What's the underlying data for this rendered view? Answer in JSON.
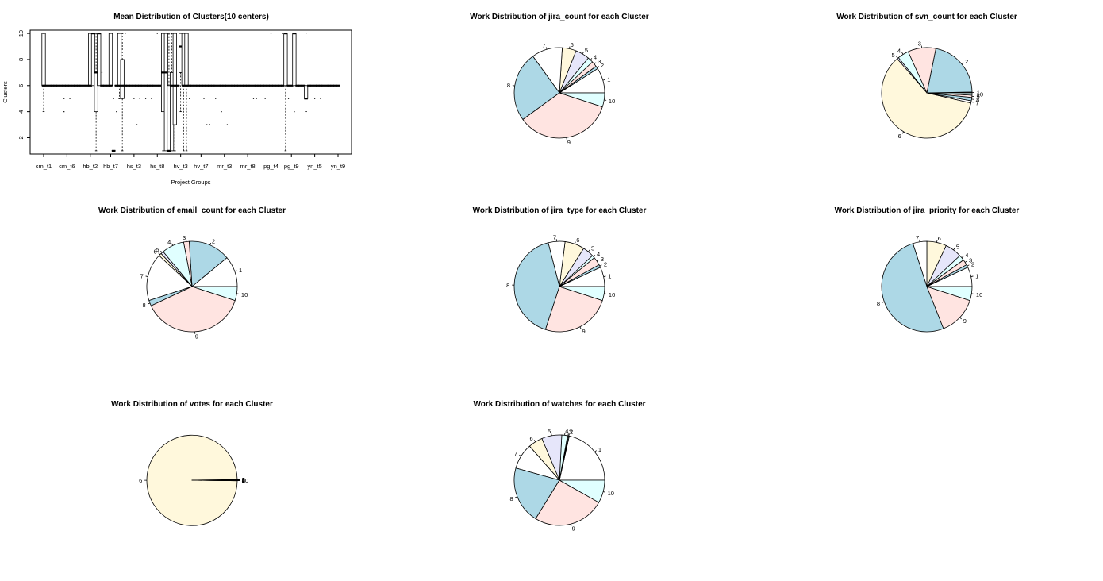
{
  "chart_data": [
    {
      "type": "boxplot",
      "title": "Mean Distribution of Clusters(10 centers)",
      "xlabel": "Project Groups",
      "ylabel": "Clusters",
      "ylim": [
        1,
        10
      ],
      "yticks": [
        2,
        4,
        6,
        8,
        10
      ],
      "xtick_labels": [
        "cm_t1",
        "cm_t6",
        "hb_t2",
        "hb_t7",
        "hs_t3",
        "hs_t8",
        "hv_t3",
        "hv_t7",
        "mr_t3",
        "mr_t8",
        "pg_t4",
        "pg_t9",
        "yn_t5",
        "yn_t9"
      ],
      "boxes": [
        {
          "q1": 6,
          "median": 6,
          "q3": 10,
          "lo": 4,
          "hi": 10
        },
        {
          "q1": 6,
          "median": 6,
          "q3": 6,
          "lo": 6,
          "hi": 6
        },
        {
          "q1": 6,
          "median": 6,
          "q3": 6,
          "lo": 6,
          "hi": 6
        },
        {
          "q1": 6,
          "median": 6,
          "q3": 6,
          "lo": 6,
          "hi": 6
        },
        {
          "q1": 6,
          "median": 6,
          "q3": 6,
          "lo": 6,
          "hi": 6
        },
        {
          "q1": 6,
          "median": 6,
          "q3": 6,
          "lo": 6,
          "hi": 6
        },
        {
          "q1": 6,
          "median": 6,
          "q3": 6,
          "lo": 6,
          "hi": 6
        },
        {
          "q1": 6,
          "median": 6,
          "q3": 6,
          "lo": 6,
          "hi": 6
        },
        {
          "q1": 6,
          "median": 6,
          "q3": 6,
          "lo": 6,
          "hi": 6
        },
        {
          "q1": 6,
          "median": 6,
          "q3": 6,
          "lo": 6,
          "hi": 6
        },
        {
          "q1": 6,
          "median": 6,
          "q3": 6,
          "lo": 6,
          "hi": 6
        },
        {
          "q1": 6,
          "median": 6,
          "q3": 6,
          "lo": 6,
          "hi": 6
        },
        {
          "q1": 6,
          "median": 6,
          "q3": 6,
          "lo": 6,
          "hi": 6
        },
        {
          "q1": 6,
          "median": 6,
          "q3": 6,
          "lo": 6,
          "hi": 6
        },
        {
          "q1": 6,
          "median": 6,
          "q3": 6,
          "lo": 6,
          "hi": 6
        },
        {
          "q1": 6,
          "median": 6,
          "q3": 6,
          "lo": 6,
          "hi": 6
        },
        {
          "q1": 6,
          "median": 6,
          "q3": 10,
          "lo": 6,
          "hi": 10
        },
        {
          "q1": 6,
          "median": 10,
          "q3": 10,
          "lo": 6,
          "hi": 10
        },
        {
          "q1": 4,
          "median": 7,
          "q3": 7,
          "lo": 1,
          "hi": 10
        },
        {
          "q1": 6,
          "median": 10,
          "q3": 10,
          "lo": 6,
          "hi": 10
        },
        {
          "q1": 6,
          "median": 6,
          "q3": 6,
          "lo": 6,
          "hi": 6
        },
        {
          "q1": 6,
          "median": 6,
          "q3": 6,
          "lo": 6,
          "hi": 6
        },
        {
          "q1": 6,
          "median": 6,
          "q3": 6,
          "lo": 6,
          "hi": 6
        },
        {
          "q1": 6,
          "median": 6,
          "q3": 10,
          "lo": 6,
          "hi": 10
        },
        {
          "q1": 1,
          "median": 1,
          "q3": 1,
          "lo": 1,
          "hi": 1
        },
        {
          "q1": 6,
          "median": 6,
          "q3": 6,
          "lo": 6,
          "hi": 6
        },
        {
          "q1": 6,
          "median": 6,
          "q3": 10,
          "lo": 5,
          "hi": 10
        },
        {
          "q1": 5,
          "median": 6,
          "q3": 8,
          "lo": 1,
          "hi": 10
        },
        {
          "q1": 6,
          "median": 6,
          "q3": 6,
          "lo": 6,
          "hi": 6
        },
        {
          "q1": 6,
          "median": 6,
          "q3": 6,
          "lo": 6,
          "hi": 6
        },
        {
          "q1": 6,
          "median": 6,
          "q3": 6,
          "lo": 6,
          "hi": 6
        },
        {
          "q1": 6,
          "median": 6,
          "q3": 6,
          "lo": 6,
          "hi": 6
        },
        {
          "q1": 6,
          "median": 6,
          "q3": 6,
          "lo": 6,
          "hi": 6
        },
        {
          "q1": 6,
          "median": 6,
          "q3": 6,
          "lo": 6,
          "hi": 6
        },
        {
          "q1": 6,
          "median": 6,
          "q3": 6,
          "lo": 6,
          "hi": 6
        },
        {
          "q1": 6,
          "median": 6,
          "q3": 6,
          "lo": 6,
          "hi": 6
        },
        {
          "q1": 6,
          "median": 6,
          "q3": 6,
          "lo": 6,
          "hi": 6
        },
        {
          "q1": 6,
          "median": 6,
          "q3": 6,
          "lo": 6,
          "hi": 6
        },
        {
          "q1": 6,
          "median": 6,
          "q3": 6,
          "lo": 6,
          "hi": 6
        },
        {
          "q1": 6,
          "median": 6,
          "q3": 6,
          "lo": 6,
          "hi": 6
        },
        {
          "q1": 6,
          "median": 6,
          "q3": 6,
          "lo": 6,
          "hi": 6
        },
        {
          "q1": 4,
          "median": 7,
          "q3": 10,
          "lo": 1,
          "hi": 10
        },
        {
          "q1": 1,
          "median": 7,
          "q3": 10,
          "lo": 1,
          "hi": 10
        },
        {
          "q1": 1,
          "median": 1,
          "q3": 6,
          "lo": 1,
          "hi": 10
        },
        {
          "q1": 1,
          "median": 6,
          "q3": 7,
          "lo": 1,
          "hi": 10
        },
        {
          "q1": 3,
          "median": 6,
          "q3": 10,
          "lo": 1,
          "hi": 10
        },
        {
          "q1": 6,
          "median": 6,
          "q3": 6,
          "lo": 6,
          "hi": 6
        },
        {
          "q1": 7,
          "median": 9,
          "q3": 10,
          "lo": 4,
          "hi": 10
        },
        {
          "q1": 6,
          "median": 6,
          "q3": 10,
          "lo": 1,
          "hi": 10
        },
        {
          "q1": 6,
          "median": 6,
          "q3": 10,
          "lo": 1,
          "hi": 10
        },
        {
          "q1": 6,
          "median": 6,
          "q3": 6,
          "lo": 6,
          "hi": 6
        },
        {
          "q1": 6,
          "median": 6,
          "q3": 6,
          "lo": 6,
          "hi": 6
        },
        {
          "q1": 6,
          "median": 6,
          "q3": 6,
          "lo": 6,
          "hi": 6
        },
        {
          "q1": 6,
          "median": 6,
          "q3": 6,
          "lo": 6,
          "hi": 6
        },
        {
          "q1": 6,
          "median": 6,
          "q3": 6,
          "lo": 6,
          "hi": 6
        },
        {
          "q1": 6,
          "median": 6,
          "q3": 6,
          "lo": 6,
          "hi": 6
        },
        {
          "q1": 6,
          "median": 6,
          "q3": 6,
          "lo": 6,
          "hi": 6
        },
        {
          "q1": 6,
          "median": 6,
          "q3": 6,
          "lo": 6,
          "hi": 6
        },
        {
          "q1": 6,
          "median": 6,
          "q3": 6,
          "lo": 6,
          "hi": 6
        },
        {
          "q1": 6,
          "median": 6,
          "q3": 6,
          "lo": 6,
          "hi": 6
        },
        {
          "q1": 6,
          "median": 6,
          "q3": 6,
          "lo": 6,
          "hi": 6
        },
        {
          "q1": 6,
          "median": 6,
          "q3": 6,
          "lo": 6,
          "hi": 6
        },
        {
          "q1": 6,
          "median": 6,
          "q3": 6,
          "lo": 6,
          "hi": 6
        },
        {
          "q1": 6,
          "median": 6,
          "q3": 6,
          "lo": 6,
          "hi": 6
        },
        {
          "q1": 6,
          "median": 6,
          "q3": 6,
          "lo": 6,
          "hi": 6
        },
        {
          "q1": 6,
          "median": 6,
          "q3": 6,
          "lo": 6,
          "hi": 6
        },
        {
          "q1": 6,
          "median": 6,
          "q3": 6,
          "lo": 6,
          "hi": 6
        },
        {
          "q1": 6,
          "median": 6,
          "q3": 6,
          "lo": 6,
          "hi": 6
        },
        {
          "q1": 6,
          "median": 6,
          "q3": 6,
          "lo": 6,
          "hi": 6
        },
        {
          "q1": 6,
          "median": 6,
          "q3": 6,
          "lo": 6,
          "hi": 6
        },
        {
          "q1": 6,
          "median": 6,
          "q3": 6,
          "lo": 6,
          "hi": 6
        },
        {
          "q1": 6,
          "median": 6,
          "q3": 6,
          "lo": 6,
          "hi": 6
        },
        {
          "q1": 6,
          "median": 6,
          "q3": 6,
          "lo": 6,
          "hi": 6
        },
        {
          "q1": 6,
          "median": 6,
          "q3": 6,
          "lo": 6,
          "hi": 6
        },
        {
          "q1": 6,
          "median": 6,
          "q3": 6,
          "lo": 6,
          "hi": 6
        },
        {
          "q1": 6,
          "median": 6,
          "q3": 6,
          "lo": 6,
          "hi": 6
        },
        {
          "q1": 6,
          "median": 6,
          "q3": 6,
          "lo": 6,
          "hi": 6
        },
        {
          "q1": 6,
          "median": 6,
          "q3": 6,
          "lo": 6,
          "hi": 6
        },
        {
          "q1": 6,
          "median": 6,
          "q3": 6,
          "lo": 6,
          "hi": 6
        },
        {
          "q1": 6,
          "median": 6,
          "q3": 6,
          "lo": 6,
          "hi": 6
        },
        {
          "q1": 6,
          "median": 6,
          "q3": 6,
          "lo": 6,
          "hi": 6
        },
        {
          "q1": 6,
          "median": 6,
          "q3": 6,
          "lo": 6,
          "hi": 6
        },
        {
          "q1": 6,
          "median": 6,
          "q3": 6,
          "lo": 6,
          "hi": 6
        },
        {
          "q1": 6,
          "median": 10,
          "q3": 10,
          "lo": 1,
          "hi": 10
        },
        {
          "q1": 6,
          "median": 6,
          "q3": 6,
          "lo": 6,
          "hi": 6
        },
        {
          "q1": 6,
          "median": 6,
          "q3": 6,
          "lo": 6,
          "hi": 6
        },
        {
          "q1": 6,
          "median": 10,
          "q3": 10,
          "lo": 6,
          "hi": 10
        },
        {
          "q1": 6,
          "median": 6,
          "q3": 6,
          "lo": 6,
          "hi": 6
        },
        {
          "q1": 6,
          "median": 6,
          "q3": 6,
          "lo": 6,
          "hi": 6
        },
        {
          "q1": 6,
          "median": 6,
          "q3": 6,
          "lo": 6,
          "hi": 6
        },
        {
          "q1": 5,
          "median": 5,
          "q3": 6,
          "lo": 4,
          "hi": 6
        },
        {
          "q1": 6,
          "median": 6,
          "q3": 6,
          "lo": 6,
          "hi": 6
        },
        {
          "q1": 6,
          "median": 6,
          "q3": 6,
          "lo": 6,
          "hi": 6
        },
        {
          "q1": 6,
          "median": 6,
          "q3": 6,
          "lo": 6,
          "hi": 6
        },
        {
          "q1": 6,
          "median": 6,
          "q3": 6,
          "lo": 6,
          "hi": 6
        },
        {
          "q1": 6,
          "median": 6,
          "q3": 6,
          "lo": 6,
          "hi": 6
        },
        {
          "q1": 6,
          "median": 6,
          "q3": 6,
          "lo": 6,
          "hi": 6
        },
        {
          "q1": 6,
          "median": 6,
          "q3": 6,
          "lo": 6,
          "hi": 6
        },
        {
          "q1": 6,
          "median": 6,
          "q3": 6,
          "lo": 6,
          "hi": 6
        },
        {
          "q1": 6,
          "median": 6,
          "q3": 6,
          "lo": 6,
          "hi": 6
        },
        {
          "q1": 6,
          "median": 6,
          "q3": 6,
          "lo": 6,
          "hi": 6
        },
        {
          "q1": 6,
          "median": 6,
          "q3": 6,
          "lo": 6,
          "hi": 6
        }
      ],
      "outliers": [
        [
          0,
          10
        ],
        [
          7,
          5
        ],
        [
          7,
          4
        ],
        [
          9,
          5
        ],
        [
          17,
          10
        ],
        [
          19,
          10
        ],
        [
          20,
          7
        ],
        [
          24,
          5
        ],
        [
          25,
          4
        ],
        [
          26,
          5
        ],
        [
          28,
          10
        ],
        [
          31,
          5
        ],
        [
          32,
          3
        ],
        [
          33,
          5
        ],
        [
          35,
          5
        ],
        [
          37,
          5
        ],
        [
          39,
          10
        ],
        [
          49,
          5
        ],
        [
          50,
          5
        ],
        [
          55,
          5
        ],
        [
          56,
          3
        ],
        [
          57,
          3
        ],
        [
          59,
          5
        ],
        [
          61,
          4
        ],
        [
          63,
          3
        ],
        [
          72,
          5
        ],
        [
          73,
          5
        ],
        [
          76,
          5
        ],
        [
          78,
          10
        ],
        [
          82,
          10
        ],
        [
          84,
          5
        ],
        [
          86,
          4
        ],
        [
          90,
          10
        ],
        [
          93,
          5
        ],
        [
          95,
          5
        ]
      ]
    },
    {
      "type": "pie",
      "title": "Work Distribution of jira_count for each Cluster",
      "labels": [
        "1",
        "2",
        "3",
        "4",
        "5",
        "6",
        "7",
        "8",
        "9",
        "10"
      ],
      "values": [
        9,
        1,
        2,
        2,
        5,
        5,
        11,
        25,
        35,
        5
      ],
      "colors": [
        "#ffffff",
        "#add8e6",
        "#ffe4e1",
        "#e0ffff",
        "#e6e6fa",
        "#fff8dc",
        "#ffffff",
        "#add8e6",
        "#ffe4e1",
        "#e0ffff"
      ]
    },
    {
      "type": "pie",
      "title": "Work Distribution of svn_count for each Cluster",
      "labels": [
        "1",
        "2",
        "3",
        "4",
        "5",
        "6",
        "7",
        "8",
        "9",
        "10"
      ],
      "values": [
        0.3,
        21.5,
        10,
        4,
        0.6,
        60,
        0.8,
        1.2,
        0.8,
        0.8
      ],
      "colors": [
        "#ffffff",
        "#add8e6",
        "#ffe4e1",
        "#e0ffff",
        "#e6e6fa",
        "#fff8dc",
        "#ffffff",
        "#add8e6",
        "#ffe4e1",
        "#e0ffff"
      ]
    },
    {
      "type": "pie",
      "title": "Work Distribution of email_count for each Cluster",
      "labels": [
        "1",
        "2",
        "3",
        "4",
        "5",
        "6",
        "7",
        "8",
        "9",
        "10"
      ],
      "values": [
        11,
        15,
        2,
        8,
        1,
        1,
        17,
        2,
        38,
        5
      ],
      "colors": [
        "#ffffff",
        "#add8e6",
        "#ffe4e1",
        "#e0ffff",
        "#e6e6fa",
        "#fff8dc",
        "#ffffff",
        "#add8e6",
        "#ffe4e1",
        "#e0ffff"
      ]
    },
    {
      "type": "pie",
      "title": "Work Distribution of jira_type for each Cluster",
      "labels": [
        "1",
        "2",
        "3",
        "4",
        "5",
        "6",
        "7",
        "8",
        "9",
        "10"
      ],
      "values": [
        7,
        1,
        3,
        1,
        4,
        7,
        6,
        41,
        25,
        5
      ],
      "colors": [
        "#ffffff",
        "#add8e6",
        "#ffe4e1",
        "#e0ffff",
        "#e6e6fa",
        "#fff8dc",
        "#ffffff",
        "#add8e6",
        "#ffe4e1",
        "#e0ffff"
      ]
    },
    {
      "type": "pie",
      "title": "Work Distribution of jira_priority for each Cluster",
      "labels": [
        "1",
        "2",
        "3",
        "4",
        "5",
        "6",
        "7",
        "8",
        "9",
        "10"
      ],
      "values": [
        7,
        1,
        2,
        2,
        6,
        7,
        5,
        51,
        14,
        5
      ],
      "colors": [
        "#ffffff",
        "#add8e6",
        "#ffe4e1",
        "#e0ffff",
        "#e6e6fa",
        "#fff8dc",
        "#ffffff",
        "#add8e6",
        "#ffe4e1",
        "#e0ffff"
      ]
    },
    {
      "type": "pie",
      "title": "Work Distribution of votes for each Cluster",
      "labels": [
        "1",
        "2",
        "3",
        "4",
        "5",
        "6",
        "7",
        "8",
        "9",
        "10"
      ],
      "values": [
        0.05,
        0.05,
        0.05,
        0.05,
        0.05,
        99.5,
        0.05,
        0.05,
        0.05,
        0.05
      ],
      "colors": [
        "#ffffff",
        "#add8e6",
        "#ffe4e1",
        "#e0ffff",
        "#e6e6fa",
        "#fff8dc",
        "#ffffff",
        "#add8e6",
        "#ffe4e1",
        "#e0ffff"
      ]
    },
    {
      "type": "pie",
      "title": "Work Distribution of watches for each Cluster",
      "labels": [
        "1",
        "2",
        "3",
        "4",
        "5",
        "6",
        "7",
        "8",
        "9",
        "10"
      ],
      "values": [
        21,
        0.3,
        0.3,
        2,
        7,
        5,
        9,
        20,
        25,
        8
      ],
      "colors": [
        "#ffffff",
        "#add8e6",
        "#ffe4e1",
        "#e0ffff",
        "#e6e6fa",
        "#fff8dc",
        "#ffffff",
        "#add8e6",
        "#ffe4e1",
        "#e0ffff"
      ]
    }
  ]
}
